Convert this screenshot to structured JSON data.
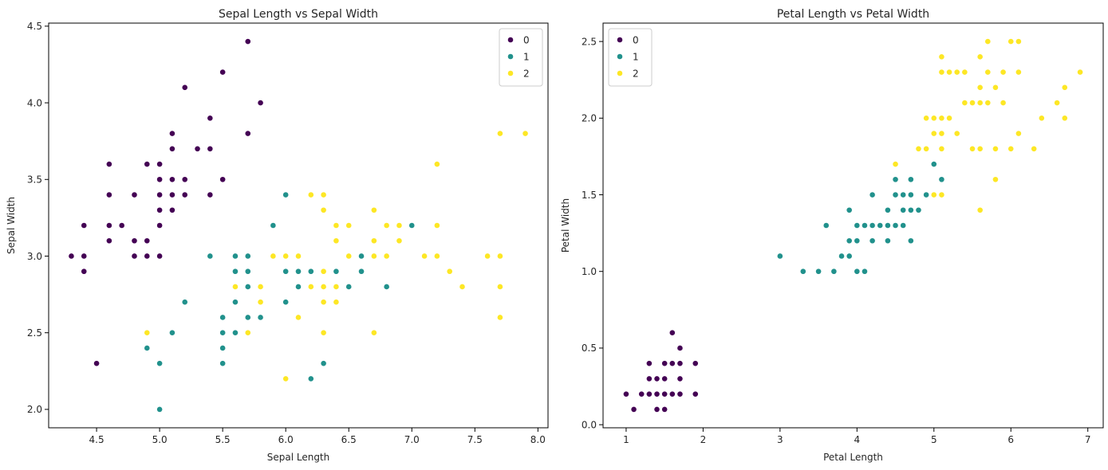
{
  "colors": {
    "0": "#440154",
    "1": "#21918c",
    "2": "#fde725"
  },
  "chart_data": [
    {
      "type": "scatter",
      "title": "Sepal Length vs Sepal Width",
      "xlabel": "Sepal Length",
      "ylabel": "Sepal Width",
      "xlim": [
        4.12,
        8.08
      ],
      "ylim": [
        1.88,
        4.52
      ],
      "xticks": [
        4.5,
        5.0,
        5.5,
        6.0,
        6.5,
        7.0,
        7.5,
        8.0
      ],
      "xtick_labels": [
        "4.5",
        "5.0",
        "5.5",
        "6.0",
        "6.5",
        "7.0",
        "7.5",
        "8.0"
      ],
      "yticks": [
        2.0,
        2.5,
        3.0,
        3.5,
        4.0,
        4.5
      ],
      "ytick_labels": [
        "2.0",
        "2.5",
        "3.0",
        "3.5",
        "4.0",
        "4.5"
      ],
      "grid": false,
      "legend": {
        "loc": "upper-right",
        "labels": [
          "0",
          "1",
          "2"
        ]
      },
      "series": [
        {
          "name": "0",
          "points": [
            [
              4.3,
              3.0
            ],
            [
              4.4,
              3.2
            ],
            [
              4.4,
              3.0
            ],
            [
              4.4,
              2.9
            ],
            [
              4.5,
              2.3
            ],
            [
              4.6,
              3.6
            ],
            [
              4.6,
              3.4
            ],
            [
              4.6,
              3.2
            ],
            [
              4.6,
              3.1
            ],
            [
              4.7,
              3.2
            ],
            [
              4.8,
              3.4
            ],
            [
              4.8,
              3.1
            ],
            [
              4.8,
              3.0
            ],
            [
              4.9,
              3.6
            ],
            [
              4.9,
              3.1
            ],
            [
              4.9,
              3.0
            ],
            [
              5.0,
              3.6
            ],
            [
              5.0,
              3.5
            ],
            [
              5.0,
              3.4
            ],
            [
              5.0,
              3.3
            ],
            [
              5.0,
              3.2
            ],
            [
              5.0,
              3.0
            ],
            [
              5.1,
              3.8
            ],
            [
              5.1,
              3.7
            ],
            [
              5.1,
              3.5
            ],
            [
              5.1,
              3.4
            ],
            [
              5.1,
              3.3
            ],
            [
              5.2,
              4.1
            ],
            [
              5.2,
              3.5
            ],
            [
              5.2,
              3.4
            ],
            [
              5.3,
              3.7
            ],
            [
              5.4,
              3.9
            ],
            [
              5.4,
              3.7
            ],
            [
              5.4,
              3.4
            ],
            [
              5.5,
              4.2
            ],
            [
              5.5,
              3.5
            ],
            [
              5.7,
              4.4
            ],
            [
              5.7,
              3.8
            ],
            [
              5.8,
              4.0
            ]
          ]
        },
        {
          "name": "1",
          "points": [
            [
              4.9,
              2.4
            ],
            [
              5.0,
              2.3
            ],
            [
              5.0,
              2.0
            ],
            [
              5.1,
              2.5
            ],
            [
              5.2,
              2.7
            ],
            [
              5.4,
              3.0
            ],
            [
              5.5,
              2.6
            ],
            [
              5.5,
              2.5
            ],
            [
              5.5,
              2.4
            ],
            [
              5.5,
              2.3
            ],
            [
              5.6,
              3.0
            ],
            [
              5.6,
              2.9
            ],
            [
              5.6,
              2.7
            ],
            [
              5.6,
              2.5
            ],
            [
              5.7,
              3.0
            ],
            [
              5.7,
              2.9
            ],
            [
              5.7,
              2.8
            ],
            [
              5.7,
              2.6
            ],
            [
              5.8,
              2.7
            ],
            [
              5.8,
              2.6
            ],
            [
              5.9,
              3.2
            ],
            [
              5.9,
              3.0
            ],
            [
              6.0,
              3.4
            ],
            [
              6.0,
              2.9
            ],
            [
              6.0,
              2.7
            ],
            [
              6.1,
              3.0
            ],
            [
              6.1,
              2.9
            ],
            [
              6.1,
              2.8
            ],
            [
              6.2,
              2.9
            ],
            [
              6.2,
              2.2
            ],
            [
              6.3,
              3.3
            ],
            [
              6.3,
              2.3
            ],
            [
              6.4,
              2.9
            ],
            [
              6.5,
              2.8
            ],
            [
              6.6,
              3.0
            ],
            [
              6.6,
              2.9
            ],
            [
              6.7,
              3.1
            ],
            [
              6.7,
              3.0
            ],
            [
              6.8,
              2.8
            ],
            [
              7.0,
              3.2
            ]
          ]
        },
        {
          "name": "2",
          "points": [
            [
              4.9,
              2.5
            ],
            [
              5.6,
              2.8
            ],
            [
              5.7,
              2.5
            ],
            [
              5.8,
              2.8
            ],
            [
              5.8,
              2.7
            ],
            [
              5.9,
              3.0
            ],
            [
              6.0,
              3.0
            ],
            [
              6.0,
              2.2
            ],
            [
              6.1,
              3.0
            ],
            [
              6.1,
              2.6
            ],
            [
              6.2,
              3.4
            ],
            [
              6.2,
              2.8
            ],
            [
              6.3,
              3.4
            ],
            [
              6.3,
              3.3
            ],
            [
              6.3,
              2.9
            ],
            [
              6.3,
              2.8
            ],
            [
              6.3,
              2.7
            ],
            [
              6.3,
              2.5
            ],
            [
              6.4,
              3.2
            ],
            [
              6.4,
              3.1
            ],
            [
              6.4,
              2.8
            ],
            [
              6.4,
              2.7
            ],
            [
              6.5,
              3.2
            ],
            [
              6.5,
              3.0
            ],
            [
              6.7,
              3.3
            ],
            [
              6.7,
              3.1
            ],
            [
              6.7,
              3.0
            ],
            [
              6.7,
              2.5
            ],
            [
              6.8,
              3.2
            ],
            [
              6.8,
              3.0
            ],
            [
              6.9,
              3.2
            ],
            [
              6.9,
              3.1
            ],
            [
              7.1,
              3.0
            ],
            [
              7.2,
              3.6
            ],
            [
              7.2,
              3.2
            ],
            [
              7.2,
              3.0
            ],
            [
              7.3,
              2.9
            ],
            [
              7.4,
              2.8
            ],
            [
              7.6,
              3.0
            ],
            [
              7.7,
              3.8
            ],
            [
              7.7,
              3.0
            ],
            [
              7.7,
              2.8
            ],
            [
              7.7,
              2.6
            ],
            [
              7.9,
              3.8
            ]
          ]
        }
      ]
    },
    {
      "type": "scatter",
      "title": "Petal Length vs Petal Width",
      "xlabel": "Petal Length",
      "ylabel": "Petal Width",
      "xlim": [
        0.7,
        7.2
      ],
      "ylim": [
        -0.02,
        2.62
      ],
      "xticks": [
        1,
        2,
        3,
        4,
        5,
        6,
        7
      ],
      "xtick_labels": [
        "1",
        "2",
        "3",
        "4",
        "5",
        "6",
        "7"
      ],
      "yticks": [
        0.0,
        0.5,
        1.0,
        1.5,
        2.0,
        2.5
      ],
      "ytick_labels": [
        "0.0",
        "0.5",
        "1.0",
        "1.5",
        "2.0",
        "2.5"
      ],
      "grid": false,
      "legend": {
        "loc": "upper-left",
        "labels": [
          "0",
          "1",
          "2"
        ]
      },
      "series": [
        {
          "name": "0",
          "points": [
            [
              1.0,
              0.2
            ],
            [
              1.1,
              0.1
            ],
            [
              1.2,
              0.2
            ],
            [
              1.3,
              0.4
            ],
            [
              1.3,
              0.3
            ],
            [
              1.3,
              0.2
            ],
            [
              1.4,
              0.3
            ],
            [
              1.4,
              0.2
            ],
            [
              1.4,
              0.1
            ],
            [
              1.5,
              0.4
            ],
            [
              1.5,
              0.3
            ],
            [
              1.5,
              0.2
            ],
            [
              1.5,
              0.1
            ],
            [
              1.6,
              0.6
            ],
            [
              1.6,
              0.4
            ],
            [
              1.6,
              0.2
            ],
            [
              1.7,
              0.5
            ],
            [
              1.7,
              0.4
            ],
            [
              1.7,
              0.3
            ],
            [
              1.7,
              0.2
            ],
            [
              1.9,
              0.4
            ],
            [
              1.9,
              0.2
            ]
          ]
        },
        {
          "name": "1",
          "points": [
            [
              3.0,
              1.1
            ],
            [
              3.3,
              1.0
            ],
            [
              3.5,
              1.0
            ],
            [
              3.6,
              1.3
            ],
            [
              3.7,
              1.0
            ],
            [
              3.8,
              1.1
            ],
            [
              3.9,
              1.4
            ],
            [
              3.9,
              1.2
            ],
            [
              3.9,
              1.1
            ],
            [
              4.0,
              1.3
            ],
            [
              4.0,
              1.2
            ],
            [
              4.0,
              1.0
            ],
            [
              4.1,
              1.3
            ],
            [
              4.1,
              1.0
            ],
            [
              4.2,
              1.5
            ],
            [
              4.2,
              1.3
            ],
            [
              4.2,
              1.2
            ],
            [
              4.3,
              1.3
            ],
            [
              4.4,
              1.4
            ],
            [
              4.4,
              1.3
            ],
            [
              4.4,
              1.2
            ],
            [
              4.5,
              1.6
            ],
            [
              4.5,
              1.5
            ],
            [
              4.5,
              1.3
            ],
            [
              4.6,
              1.5
            ],
            [
              4.6,
              1.4
            ],
            [
              4.6,
              1.3
            ],
            [
              4.7,
              1.6
            ],
            [
              4.7,
              1.5
            ],
            [
              4.7,
              1.4
            ],
            [
              4.7,
              1.2
            ],
            [
              4.8,
              1.4
            ],
            [
              4.9,
              1.5
            ],
            [
              5.0,
              1.7
            ],
            [
              5.1,
              1.6
            ]
          ]
        },
        {
          "name": "2",
          "points": [
            [
              4.5,
              1.7
            ],
            [
              4.8,
              1.8
            ],
            [
              4.9,
              2.0
            ],
            [
              4.9,
              1.8
            ],
            [
              5.0,
              2.0
            ],
            [
              5.0,
              1.9
            ],
            [
              5.0,
              1.5
            ],
            [
              5.1,
              2.4
            ],
            [
              5.1,
              2.3
            ],
            [
              5.1,
              2.0
            ],
            [
              5.1,
              1.9
            ],
            [
              5.1,
              1.8
            ],
            [
              5.1,
              1.5
            ],
            [
              5.2,
              2.3
            ],
            [
              5.2,
              2.0
            ],
            [
              5.3,
              2.3
            ],
            [
              5.3,
              1.9
            ],
            [
              5.4,
              2.3
            ],
            [
              5.4,
              2.1
            ],
            [
              5.5,
              2.1
            ],
            [
              5.5,
              1.8
            ],
            [
              5.6,
              2.4
            ],
            [
              5.6,
              2.2
            ],
            [
              5.6,
              2.1
            ],
            [
              5.6,
              1.8
            ],
            [
              5.6,
              1.4
            ],
            [
              5.7,
              2.5
            ],
            [
              5.7,
              2.3
            ],
            [
              5.7,
              2.1
            ],
            [
              5.8,
              2.2
            ],
            [
              5.8,
              1.8
            ],
            [
              5.8,
              1.6
            ],
            [
              5.9,
              2.3
            ],
            [
              5.9,
              2.1
            ],
            [
              6.0,
              2.5
            ],
            [
              6.0,
              1.8
            ],
            [
              6.1,
              2.5
            ],
            [
              6.1,
              2.3
            ],
            [
              6.1,
              1.9
            ],
            [
              6.3,
              1.8
            ],
            [
              6.4,
              2.0
            ],
            [
              6.6,
              2.1
            ],
            [
              6.7,
              2.2
            ],
            [
              6.7,
              2.0
            ],
            [
              6.9,
              2.3
            ]
          ]
        }
      ]
    }
  ]
}
